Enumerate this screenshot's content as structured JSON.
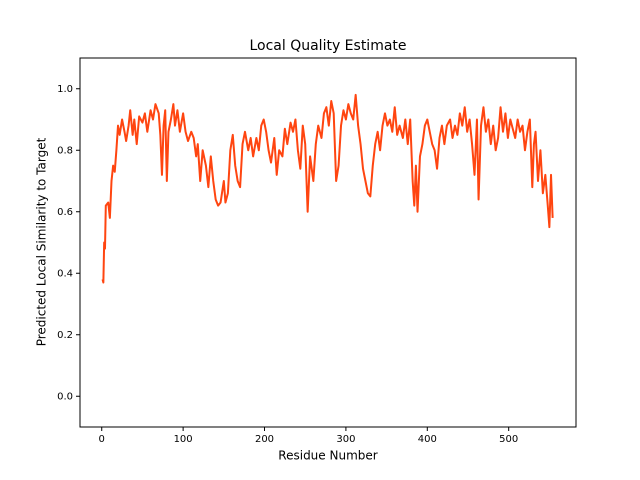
{
  "chart_data": {
    "type": "line",
    "title": "Local Quality Estimate",
    "xlabel": "Residue Number",
    "ylabel": "Predicted Local Similarity to Target",
    "xlim": [
      -26.7,
      582.7
    ],
    "ylim": [
      -0.1,
      1.1
    ],
    "xticks": [
      0,
      100,
      200,
      300,
      400,
      500
    ],
    "yticks": [
      {
        "value": 0,
        "label": "0.0"
      },
      0.2,
      0.4,
      0.6,
      0.8,
      {
        "value": 1,
        "label": "1.0"
      }
    ],
    "series": [
      {
        "color": "#ff4510",
        "x": [
          1,
          2,
          3,
          4,
          5,
          8,
          10,
          12,
          14,
          16,
          18,
          20,
          22,
          25,
          28,
          30,
          33,
          35,
          38,
          40,
          43,
          46,
          50,
          53,
          56,
          60,
          63,
          66,
          70,
          72,
          74,
          76,
          78,
          80,
          82,
          85,
          88,
          90,
          93,
          96,
          100,
          103,
          106,
          110,
          113,
          116,
          118,
          121,
          124,
          128,
          131,
          134,
          137,
          140,
          143,
          146,
          150,
          152,
          155,
          158,
          161,
          164,
          167,
          170,
          173,
          176,
          180,
          183,
          186,
          190,
          193,
          196,
          199,
          202,
          205,
          208,
          212,
          215,
          218,
          222,
          225,
          228,
          232,
          235,
          238,
          241,
          244,
          247,
          250,
          253,
          256,
          260,
          263,
          266,
          270,
          273,
          276,
          279,
          282,
          285,
          288,
          291,
          294,
          297,
          300,
          303,
          306,
          309,
          312,
          315,
          318,
          321,
          324,
          327,
          330,
          333,
          336,
          339,
          342,
          345,
          348,
          351,
          354,
          357,
          360,
          363,
          366,
          370,
          373,
          376,
          379,
          382,
          384,
          386,
          388,
          391,
          394,
          397,
          400,
          403,
          406,
          409,
          412,
          415,
          418,
          421,
          424,
          428,
          431,
          434,
          437,
          440,
          443,
          446,
          449,
          452,
          455,
          458,
          461,
          463,
          466,
          469,
          472,
          475,
          478,
          481,
          484,
          487,
          490,
          493,
          496,
          499,
          502,
          505,
          508,
          511,
          514,
          517,
          520,
          523,
          526,
          529,
          531,
          533,
          536,
          539,
          542,
          545,
          548,
          550,
          552,
          554
        ],
        "values": [
          0.38,
          0.37,
          0.5,
          0.48,
          0.62,
          0.63,
          0.58,
          0.7,
          0.75,
          0.73,
          0.8,
          0.88,
          0.85,
          0.9,
          0.86,
          0.83,
          0.88,
          0.93,
          0.85,
          0.9,
          0.82,
          0.91,
          0.89,
          0.92,
          0.86,
          0.93,
          0.9,
          0.95,
          0.92,
          0.85,
          0.72,
          0.88,
          0.93,
          0.7,
          0.86,
          0.9,
          0.95,
          0.88,
          0.93,
          0.86,
          0.92,
          0.86,
          0.83,
          0.86,
          0.84,
          0.78,
          0.82,
          0.7,
          0.8,
          0.75,
          0.68,
          0.78,
          0.7,
          0.64,
          0.62,
          0.63,
          0.7,
          0.63,
          0.66,
          0.8,
          0.85,
          0.75,
          0.7,
          0.68,
          0.82,
          0.86,
          0.8,
          0.84,
          0.78,
          0.84,
          0.8,
          0.88,
          0.9,
          0.86,
          0.8,
          0.76,
          0.84,
          0.72,
          0.8,
          0.78,
          0.87,
          0.82,
          0.89,
          0.86,
          0.9,
          0.8,
          0.74,
          0.88,
          0.82,
          0.6,
          0.78,
          0.7,
          0.82,
          0.88,
          0.84,
          0.92,
          0.94,
          0.88,
          0.96,
          0.92,
          0.7,
          0.75,
          0.88,
          0.93,
          0.9,
          0.95,
          0.92,
          0.9,
          0.98,
          0.88,
          0.82,
          0.74,
          0.7,
          0.66,
          0.65,
          0.75,
          0.82,
          0.86,
          0.8,
          0.88,
          0.92,
          0.88,
          0.9,
          0.86,
          0.94,
          0.85,
          0.88,
          0.84,
          0.9,
          0.82,
          0.9,
          0.7,
          0.62,
          0.75,
          0.6,
          0.78,
          0.82,
          0.88,
          0.9,
          0.86,
          0.82,
          0.8,
          0.74,
          0.84,
          0.88,
          0.82,
          0.88,
          0.9,
          0.84,
          0.88,
          0.85,
          0.92,
          0.88,
          0.94,
          0.86,
          0.9,
          0.82,
          0.72,
          0.9,
          0.64,
          0.88,
          0.94,
          0.86,
          0.9,
          0.82,
          0.88,
          0.8,
          0.84,
          0.94,
          0.86,
          0.92,
          0.84,
          0.9,
          0.87,
          0.84,
          0.9,
          0.86,
          0.88,
          0.8,
          0.86,
          0.9,
          0.68,
          0.82,
          0.86,
          0.7,
          0.8,
          0.66,
          0.72,
          0.62,
          0.55,
          0.72,
          0.58
        ]
      }
    ]
  }
}
